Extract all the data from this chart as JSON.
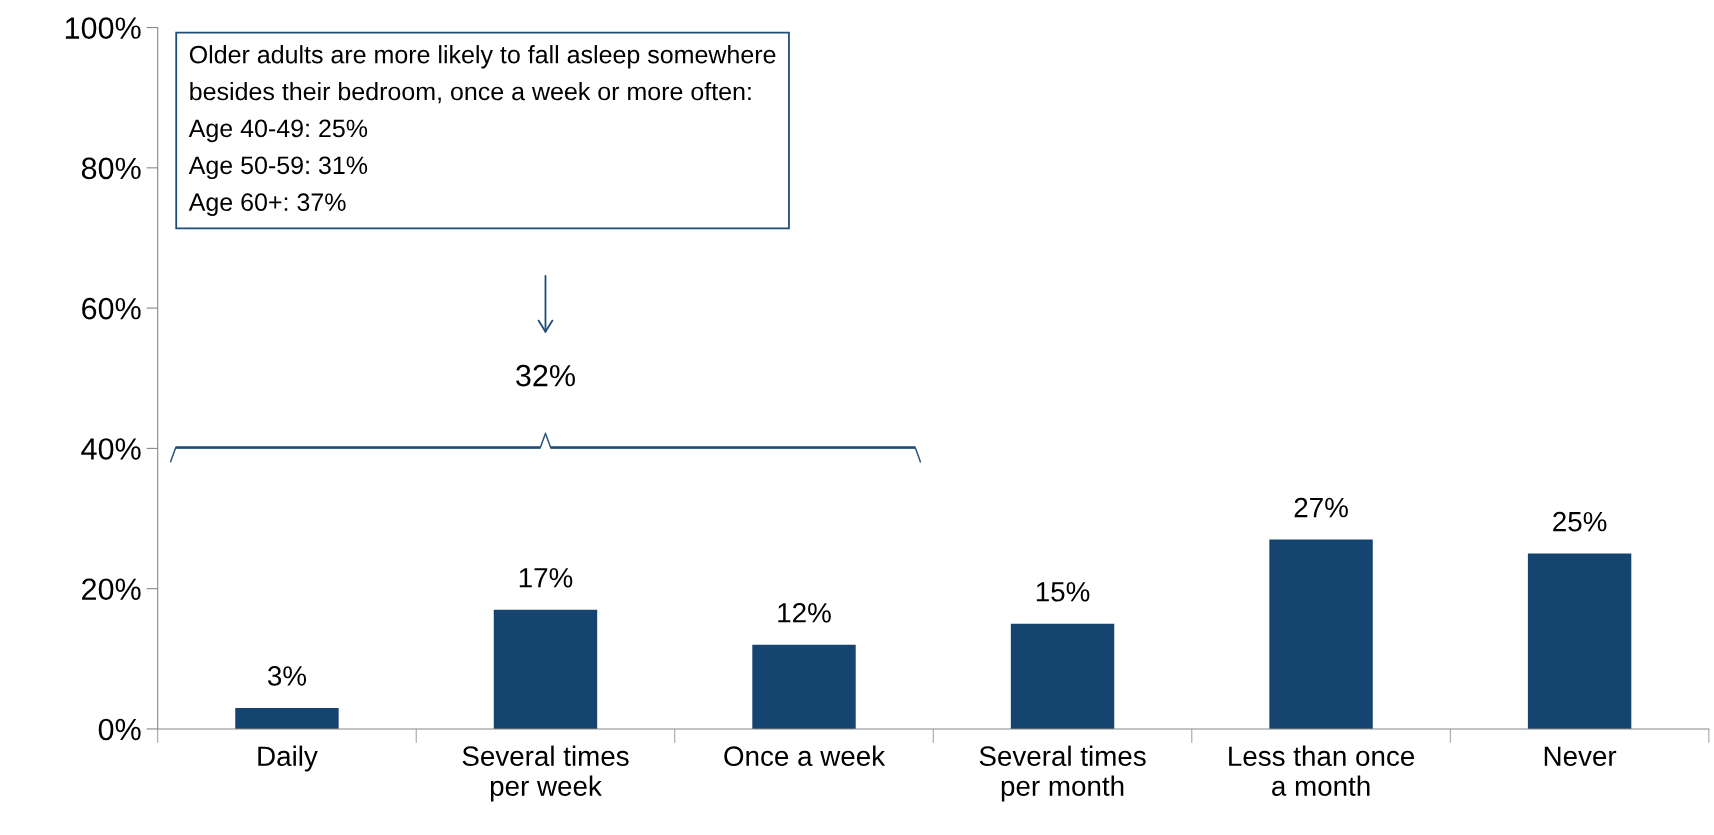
{
  "chart_data": {
    "type": "bar",
    "categories": [
      "Daily",
      "Several times\nper week",
      "Once a week",
      "Several times\nper month",
      "Less than once\na month",
      "Never"
    ],
    "values": [
      3,
      17,
      12,
      15,
      27,
      25
    ],
    "color": "#154470",
    "value_labels": [
      "3%",
      "17%",
      "12%",
      "15%",
      "27%",
      "25%"
    ],
    "ylim": [
      0,
      100
    ],
    "yticks": [
      {
        "value": 0,
        "label": "0%"
      },
      {
        "value": 20,
        "label": "20%"
      },
      {
        "value": 40,
        "label": "40%"
      },
      {
        "value": 60,
        "label": "60%"
      },
      {
        "value": 80,
        "label": "80%"
      },
      {
        "value": 100,
        "label": "100%"
      }
    ],
    "grid": false,
    "legend": false,
    "annotations": [
      "Older adults are more likely to fall asleep somewhere\nbesides their bedroom, once a week or more often:\nAge 40-49: 25%\nAge 50-59: 31%\nAge 60+: 37%",
      "32%"
    ]
  }
}
